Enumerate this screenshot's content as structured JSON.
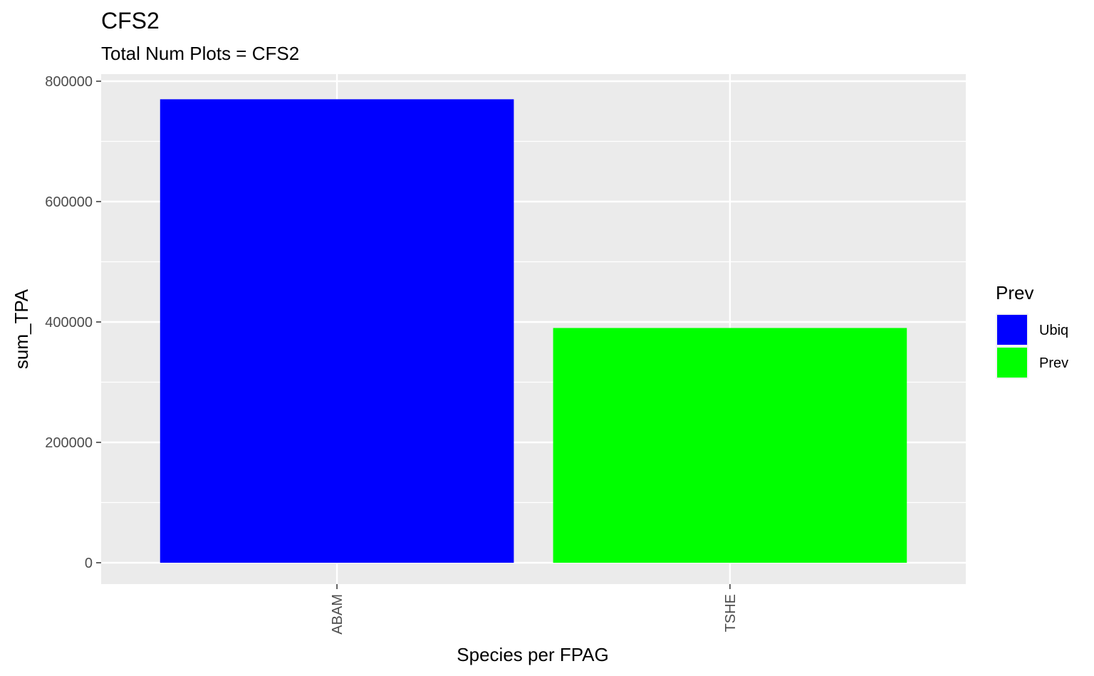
{
  "chart_data": {
    "type": "bar",
    "title": "CFS2",
    "subtitle": "Total Num Plots = CFS2",
    "xlabel": "Species per FPAG",
    "ylabel": "sum_TPA",
    "categories": [
      "ABAM",
      "TSHE"
    ],
    "values": [
      770000,
      390000
    ],
    "bar_groups": [
      "Ubiq",
      "Prev"
    ],
    "ylim": [
      0,
      800000
    ],
    "y_ticks": [
      "0",
      "200000",
      "400000",
      "600000",
      "800000"
    ],
    "y_tick_values": [
      0,
      200000,
      400000,
      600000,
      800000
    ],
    "grid": true,
    "legend": {
      "title": "Prev",
      "position": "right",
      "entries": [
        {
          "label": "Ubiq",
          "color": "#0000ff"
        },
        {
          "label": "Prev",
          "color": "#00ff00"
        }
      ]
    },
    "colors": {
      "Ubiq": "#0000ff",
      "Prev": "#00ff00"
    },
    "panel_background": "#ebebeb",
    "grid_color": "#ffffff"
  }
}
